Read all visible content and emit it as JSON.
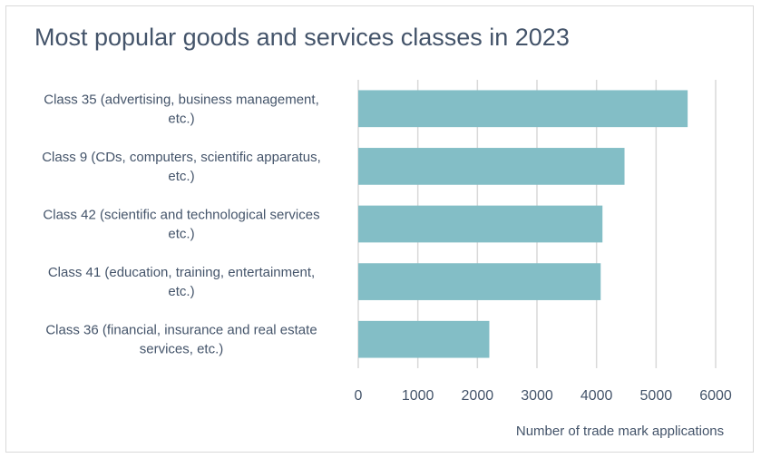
{
  "chart_data": {
    "type": "bar",
    "orientation": "horizontal",
    "title": "Most popular goods and services classes in 2023",
    "xlabel": "Number of trade mark applications",
    "ylabel": "",
    "categories": [
      [
        "Class 35 (advertising, business management,",
        "etc.)"
      ],
      [
        "Class 9 (CDs, computers, scientific apparatus,",
        "etc.)"
      ],
      [
        "Class 42 (scientific and technological services",
        "etc.)"
      ],
      [
        "Class 41 (education, training, entertainment,",
        "etc.)"
      ],
      [
        "Class 36 (financial, insurance and real estate",
        "services, etc.)"
      ]
    ],
    "values": [
      5530,
      4470,
      4100,
      4070,
      2200
    ],
    "xlim": [
      0,
      6000
    ],
    "xticks": [
      0,
      1000,
      2000,
      3000,
      4000,
      5000,
      6000
    ],
    "grid": true,
    "legend": "none",
    "bar_color": "#83bec6",
    "grid_color": "#d9d9d9",
    "text_color": "#44546a"
  }
}
